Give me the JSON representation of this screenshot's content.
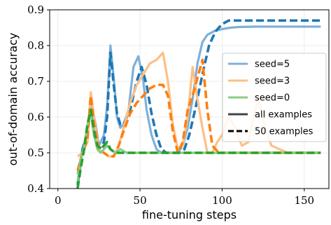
{
  "chart_data": {
    "type": "line",
    "xlabel": "fine-tuning steps",
    "ylabel": "out-of-domain accuracy",
    "xlim": [
      -5,
      165
    ],
    "ylim": [
      0.4,
      0.9
    ],
    "xticks": [
      0,
      50,
      100,
      150
    ],
    "yticks": [
      0.4,
      0.5,
      0.6,
      0.7,
      0.8,
      0.9
    ],
    "xtick_labels": [
      "0",
      "50",
      "100",
      "150"
    ],
    "ytick_labels": [
      "0.4",
      "0.5",
      "0.6",
      "0.7",
      "0.8",
      "0.9"
    ],
    "grid": true,
    "legend_position": "center-right",
    "legend": [
      {
        "label": "seed=5",
        "kind": "color",
        "color": "#7fb0d8"
      },
      {
        "label": "seed=3",
        "kind": "color",
        "color": "#fdbf86"
      },
      {
        "label": "seed=0",
        "kind": "color",
        "color": "#88cc88"
      },
      {
        "label": "all examples",
        "kind": "style",
        "style": "solid"
      },
      {
        "label": "50 examples",
        "kind": "style",
        "style": "dashed"
      }
    ],
    "series": [
      {
        "legend_label": "seed=5",
        "subset": "all examples",
        "color": "#7fb0d8",
        "style": "solid",
        "x": [
          12,
          15,
          18,
          20,
          23,
          25,
          28,
          30,
          32,
          34,
          36,
          38,
          40,
          43,
          46,
          49,
          52,
          54,
          57,
          60,
          63,
          66,
          70,
          73,
          76,
          79,
          82,
          85,
          88,
          91,
          95,
          100,
          105,
          110,
          120,
          130,
          140,
          150,
          160
        ],
        "y": [
          0.44,
          0.51,
          0.56,
          0.64,
          0.58,
          0.52,
          0.55,
          0.63,
          0.8,
          0.71,
          0.6,
          0.57,
          0.58,
          0.62,
          0.74,
          0.77,
          0.7,
          0.62,
          0.55,
          0.51,
          0.5,
          0.5,
          0.5,
          0.5,
          0.52,
          0.57,
          0.65,
          0.75,
          0.81,
          0.83,
          0.84,
          0.846,
          0.85,
          0.852,
          0.853,
          0.853,
          0.853,
          0.853,
          0.853
        ]
      },
      {
        "legend_label": "seed=5",
        "subset": "50 examples",
        "color": "#1f77b4",
        "style": "dashed",
        "x": [
          12,
          15,
          18,
          20,
          22,
          25,
          28,
          30,
          32,
          34,
          36,
          38,
          40,
          44,
          48,
          51,
          54,
          57,
          60,
          63,
          66,
          70,
          74,
          77,
          80,
          84,
          88,
          92,
          96,
          100,
          104,
          110,
          120,
          140,
          160
        ],
        "y": [
          0.41,
          0.51,
          0.56,
          0.62,
          0.55,
          0.51,
          0.53,
          0.6,
          0.78,
          0.69,
          0.61,
          0.58,
          0.58,
          0.62,
          0.7,
          0.74,
          0.69,
          0.61,
          0.55,
          0.51,
          0.5,
          0.5,
          0.5,
          0.51,
          0.55,
          0.63,
          0.72,
          0.8,
          0.84,
          0.86,
          0.87,
          0.87,
          0.87,
          0.87,
          0.87
        ]
      },
      {
        "legend_label": "seed=3",
        "subset": "all examples",
        "color": "#fdbf86",
        "style": "solid",
        "x": [
          12,
          15,
          18,
          20,
          22,
          25,
          28,
          31,
          34,
          37,
          40,
          44,
          48,
          52,
          56,
          60,
          64,
          67,
          70,
          73,
          76,
          79,
          82,
          85,
          88,
          91,
          94,
          97,
          100,
          104,
          108,
          112,
          116,
          119,
          122,
          126,
          130,
          140,
          150,
          160
        ],
        "y": [
          0.49,
          0.5,
          0.53,
          0.67,
          0.6,
          0.51,
          0.5,
          0.49,
          0.49,
          0.52,
          0.57,
          0.64,
          0.69,
          0.72,
          0.75,
          0.76,
          0.78,
          0.7,
          0.58,
          0.51,
          0.52,
          0.6,
          0.74,
          0.65,
          0.57,
          0.5,
          0.5,
          0.53,
          0.55,
          0.6,
          0.57,
          0.52,
          0.53,
          0.6,
          0.65,
          0.57,
          0.52,
          0.5,
          0.5,
          0.5
        ]
      },
      {
        "legend_label": "seed=3",
        "subset": "50 examples",
        "color": "#ff7f0e",
        "style": "dashed",
        "x": [
          12,
          15,
          18,
          20,
          22,
          25,
          28,
          31,
          34,
          37,
          40,
          44,
          48,
          52,
          56,
          60,
          64,
          67,
          70,
          73,
          76,
          79,
          82,
          85,
          88,
          91,
          94,
          98,
          102,
          106,
          110,
          114,
          118,
          122,
          126,
          130,
          140,
          150,
          160
        ],
        "y": [
          0.45,
          0.5,
          0.54,
          0.66,
          0.58,
          0.51,
          0.5,
          0.49,
          0.49,
          0.52,
          0.56,
          0.61,
          0.64,
          0.66,
          0.68,
          0.69,
          0.69,
          0.66,
          0.56,
          0.5,
          0.53,
          0.62,
          0.66,
          0.71,
          0.76,
          0.62,
          0.52,
          0.5,
          0.5,
          0.5,
          0.5,
          0.5,
          0.5,
          0.5,
          0.5,
          0.5,
          0.5,
          0.5,
          0.5
        ]
      },
      {
        "legend_label": "seed=0",
        "subset": "all examples",
        "color": "#88cc88",
        "style": "solid",
        "x": [
          12,
          14,
          16,
          18,
          20,
          22,
          24,
          26,
          28,
          30,
          32,
          35,
          38,
          42,
          46,
          50,
          60,
          80,
          100,
          120,
          140,
          160
        ],
        "y": [
          0.42,
          0.48,
          0.52,
          0.58,
          0.61,
          0.55,
          0.51,
          0.5,
          0.51,
          0.52,
          0.51,
          0.5,
          0.51,
          0.5,
          0.5,
          0.5,
          0.5,
          0.5,
          0.5,
          0.5,
          0.5,
          0.5
        ]
      },
      {
        "legend_label": "seed=0",
        "subset": "50 examples",
        "color": "#2ca02c",
        "style": "dashed",
        "x": [
          12,
          14,
          16,
          18,
          20,
          22,
          24,
          26,
          28,
          30,
          32,
          35,
          38,
          42,
          46,
          50,
          60,
          80,
          100,
          120,
          140,
          160
        ],
        "y": [
          0.4,
          0.46,
          0.51,
          0.58,
          0.62,
          0.56,
          0.52,
          0.51,
          0.52,
          0.53,
          0.51,
          0.5,
          0.5,
          0.5,
          0.5,
          0.5,
          0.5,
          0.5,
          0.5,
          0.5,
          0.5,
          0.5
        ]
      }
    ]
  }
}
